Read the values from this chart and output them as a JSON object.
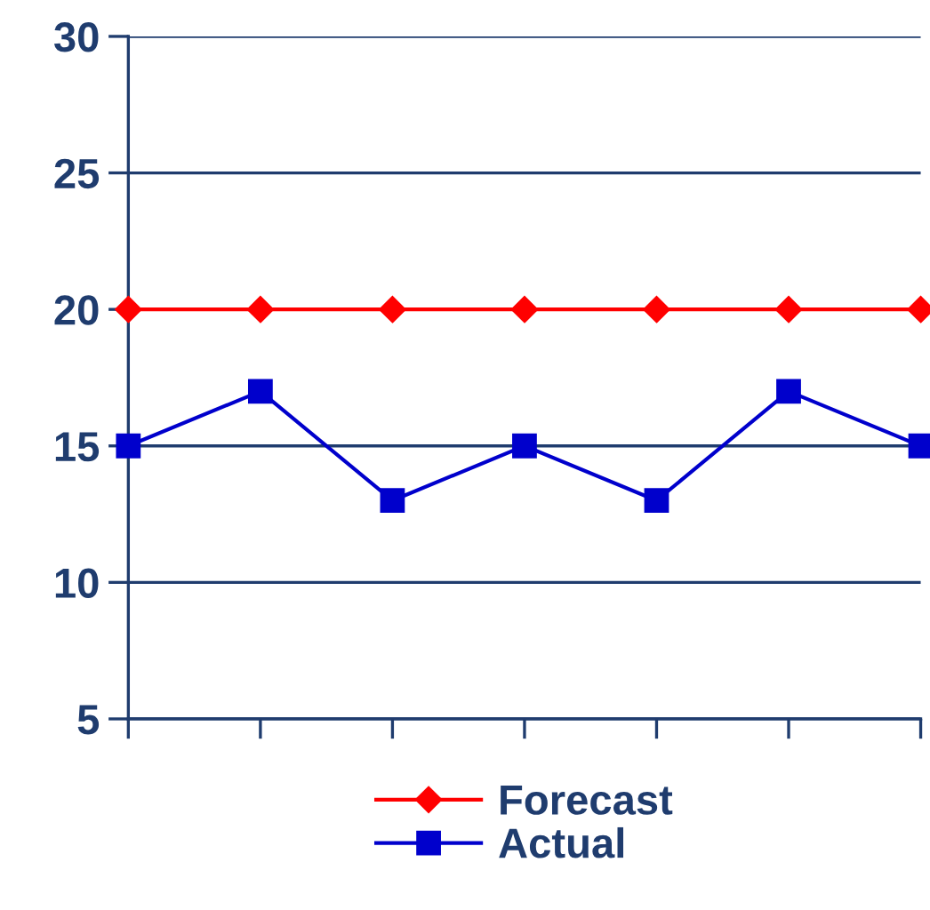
{
  "chart_data": {
    "type": "line",
    "categories": [
      null,
      null,
      null,
      null,
      null,
      null,
      null
    ],
    "series": [
      {
        "name": "Forecast",
        "color": "#ff0000",
        "marker": "diamond",
        "values": [
          20,
          20,
          20,
          20,
          20,
          20,
          20
        ]
      },
      {
        "name": "Actual",
        "color": "#0000cc",
        "marker": "square",
        "values": [
          15,
          17,
          13,
          15,
          13,
          17,
          15
        ]
      }
    ],
    "ylim": [
      5,
      30
    ],
    "yticks": [
      5,
      10,
      15,
      20,
      25,
      30
    ],
    "grid": "y",
    "legend": "bottom",
    "line_style": "solid"
  }
}
